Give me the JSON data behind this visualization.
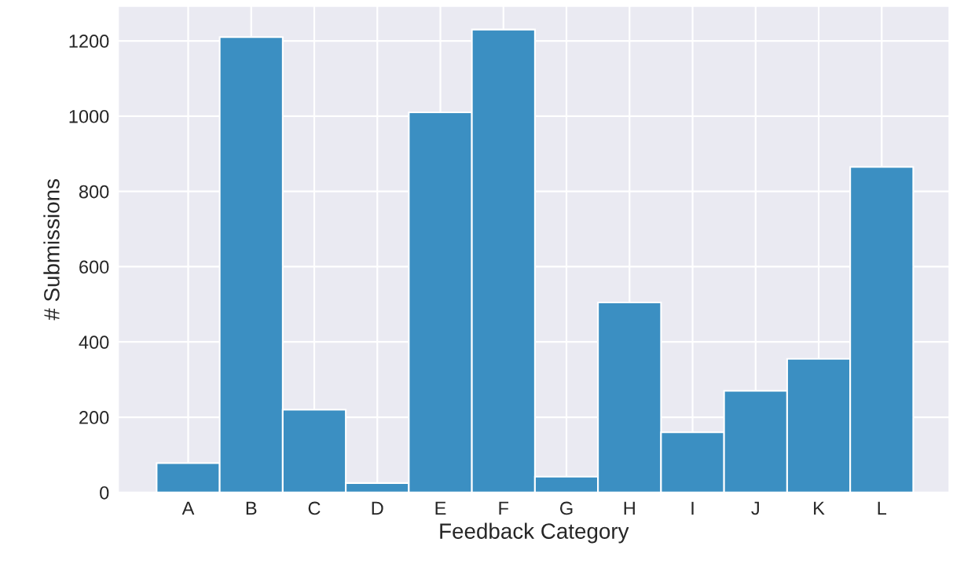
{
  "chart_data": {
    "type": "bar",
    "xlabel": "Feedback Category",
    "ylabel": "# Submissions",
    "categories": [
      "A",
      "B",
      "C",
      "D",
      "E",
      "F",
      "G",
      "H",
      "I",
      "J",
      "K",
      "L"
    ],
    "values": [
      78,
      1210,
      220,
      25,
      1010,
      1230,
      42,
      505,
      160,
      270,
      355,
      865
    ],
    "color": "#3b8fc2",
    "ylim": [
      0,
      1292
    ],
    "yticks": [
      0,
      200,
      400,
      600,
      800,
      1000,
      1200
    ],
    "grid": true
  }
}
